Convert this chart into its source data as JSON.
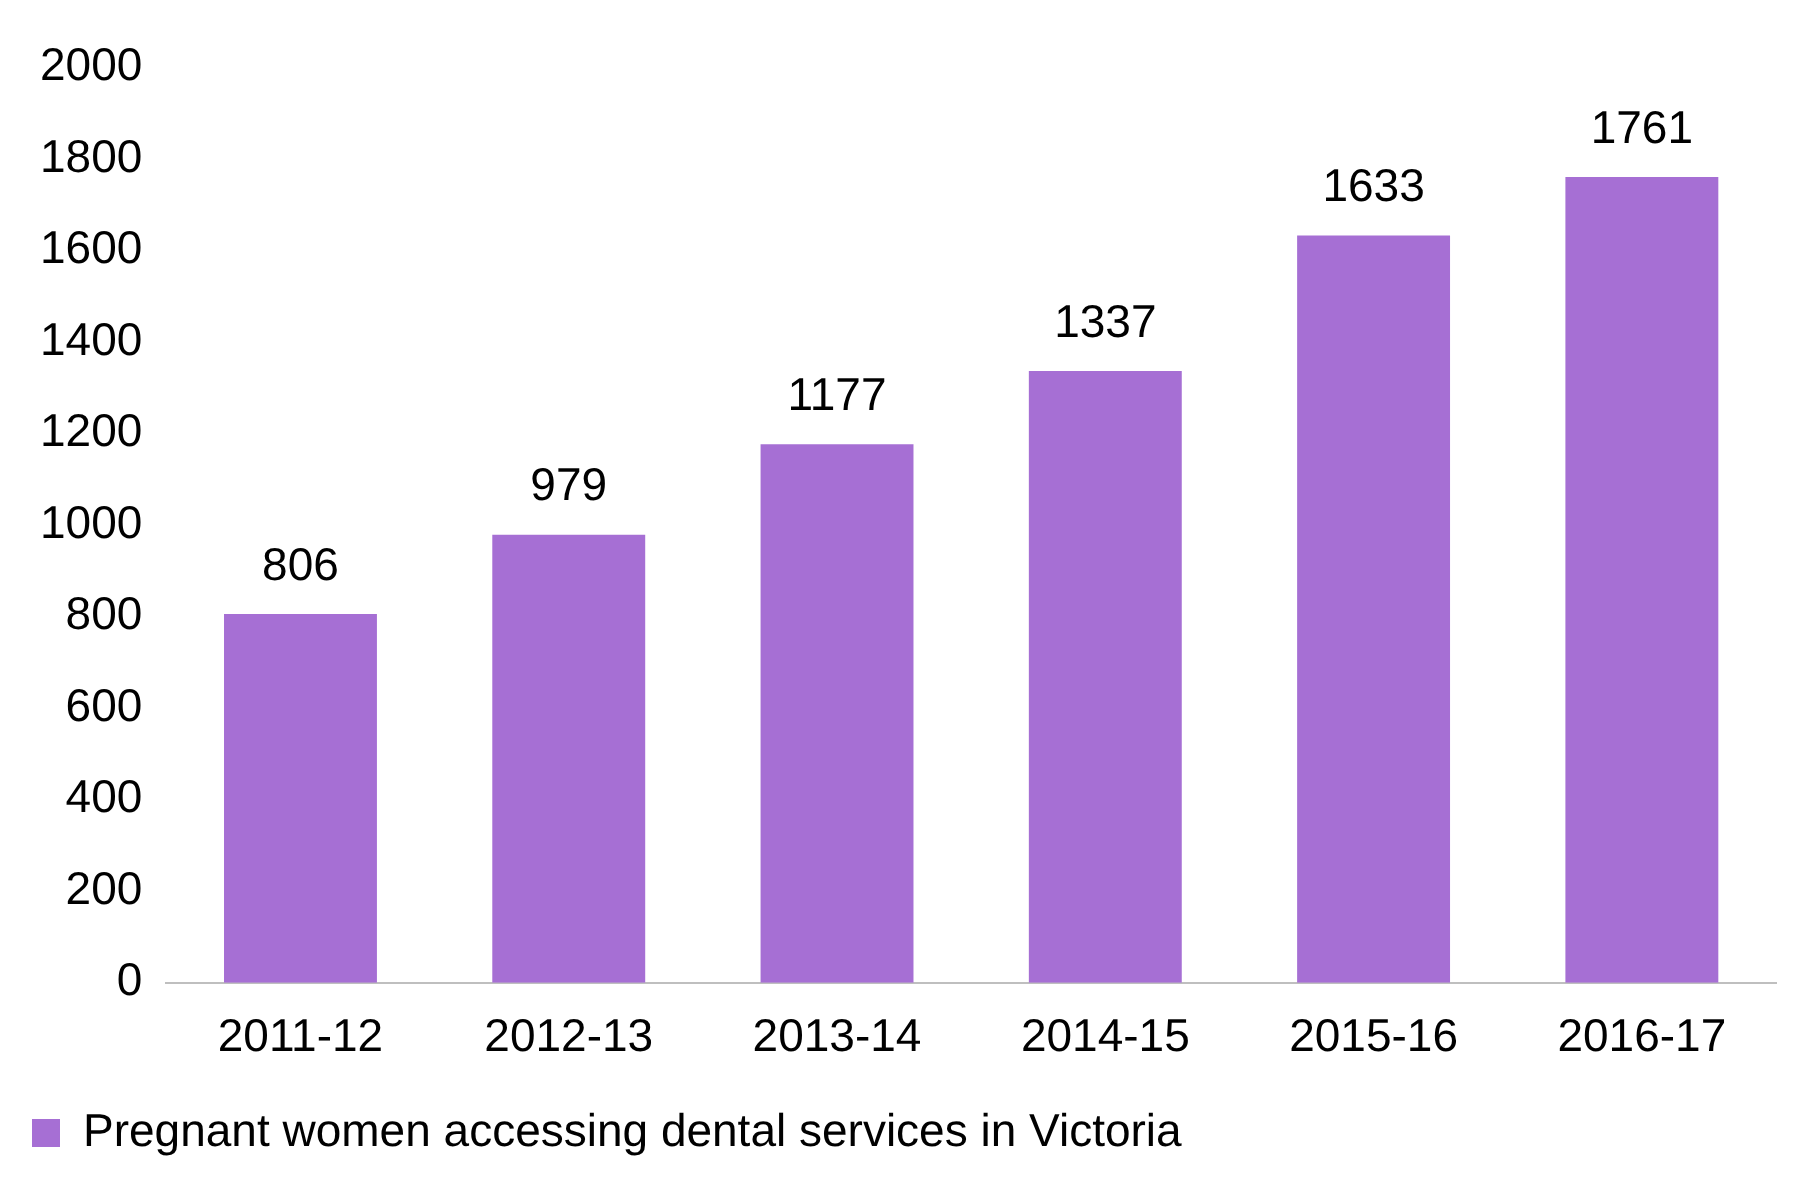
{
  "chart_data": {
    "type": "bar",
    "categories": [
      "2011-12",
      "2012-13",
      "2013-14",
      "2014-15",
      "2015-16",
      "2016-17"
    ],
    "series": [
      {
        "name": "Pregnant women accessing dental services in Victoria",
        "color": "#a66fd4",
        "values": [
          806,
          979,
          1177,
          1337,
          1633,
          1761
        ]
      }
    ],
    "ylim": [
      0,
      2000
    ],
    "yticks": [
      0,
      200,
      400,
      600,
      800,
      1000,
      1200,
      1400,
      1600,
      1800,
      2000
    ],
    "grid": false,
    "legend": "bottom",
    "data_labels": true
  }
}
